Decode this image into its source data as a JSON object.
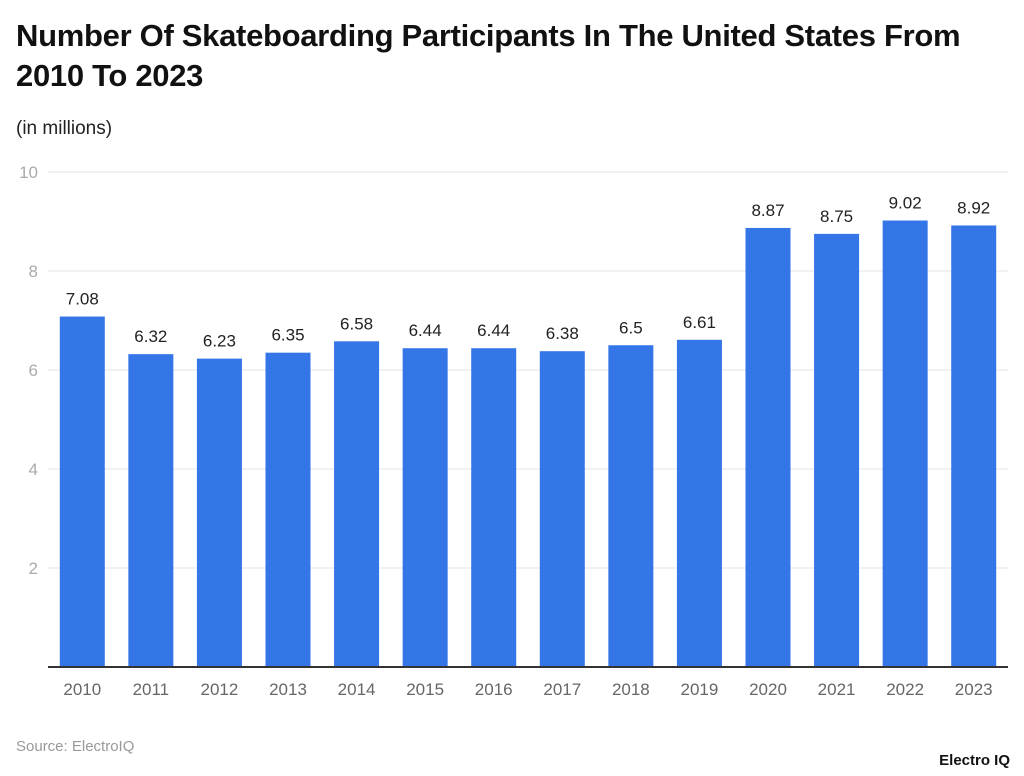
{
  "chart_data": {
    "type": "bar",
    "title": "Number Of Skateboarding Participants In The United States From 2010 To 2023",
    "subtitle": "(in millions)",
    "categories": [
      "2010",
      "2011",
      "2012",
      "2013",
      "2014",
      "2015",
      "2016",
      "2017",
      "2018",
      "2019",
      "2020",
      "2021",
      "2022",
      "2023"
    ],
    "values": [
      7.08,
      6.32,
      6.23,
      6.35,
      6.58,
      6.44,
      6.44,
      6.38,
      6.5,
      6.61,
      8.87,
      8.75,
      9.02,
      8.92
    ],
    "value_labels": [
      "7.08",
      "6.32",
      "6.23",
      "6.35",
      "6.58",
      "6.44",
      "6.44",
      "6.38",
      "6.5",
      "6.61",
      "8.87",
      "8.75",
      "9.02",
      "8.92"
    ],
    "ylim": [
      0,
      10
    ],
    "yticks": [
      "2",
      "4",
      "6",
      "8",
      "10"
    ],
    "grid": true,
    "bar_color": "#3475e8",
    "source": "Source: ElectroIQ",
    "logo": "Electro IQ"
  }
}
